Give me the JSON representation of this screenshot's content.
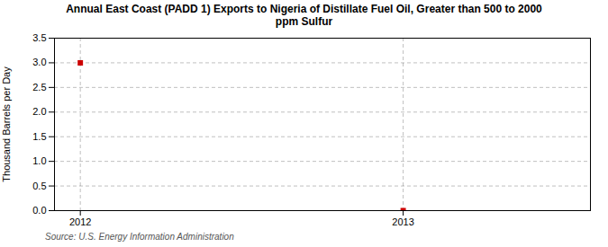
{
  "chart_data": {
    "type": "scatter",
    "title": "Annual East Coast (PADD 1) Exports to Nigeria of Distillate Fuel Oil, Greater than 500 to 2000\nppm Sulfur",
    "ylabel": "Thousand Barrels per Day",
    "source": "Source: U.S. Energy Information Administration",
    "x": [
      2012,
      2013
    ],
    "values": [
      3.0,
      0.0
    ],
    "color": "#cc0000",
    "marker": "square",
    "xlim": [
      2011.92,
      2013.58
    ],
    "xticks": [
      2012,
      2013
    ],
    "ylim": [
      0.0,
      3.5
    ],
    "yticks": [
      {
        "value": 0.0,
        "label": "0.0"
      },
      0.5,
      {
        "value": 1.0,
        "label": "1.0"
      },
      1.5,
      {
        "value": 2.0,
        "label": "2.0"
      },
      2.5,
      {
        "value": 3.0,
        "label": "3.0"
      },
      3.5
    ],
    "grid": true
  }
}
